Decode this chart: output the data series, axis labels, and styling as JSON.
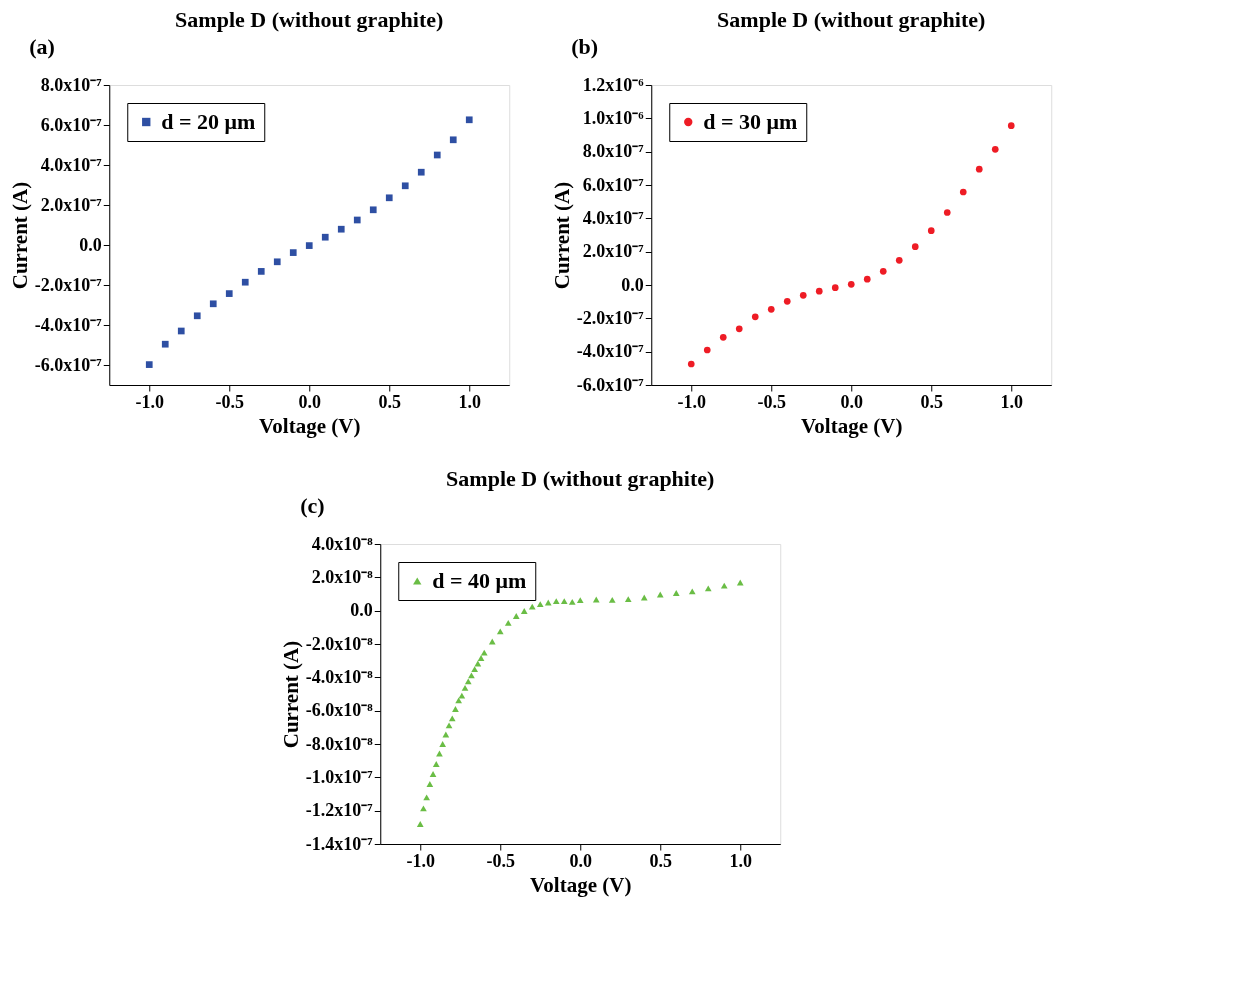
{
  "chart_data": [
    {
      "type": "scatter",
      "title": "Sample D (without graphite)",
      "xlabel": "Voltage (V)",
      "ylabel": "Current (A)",
      "annotations": [
        "(a)"
      ],
      "legend": "top left",
      "grid": false,
      "marker": "square",
      "xlim": [
        -1.25,
        1.25
      ],
      "xticks": [
        {
          "value": -1,
          "label": "-1.0"
        },
        {
          "value": -0.5,
          "label": "-0.5"
        },
        {
          "value": 0,
          "label": "0.0"
        },
        {
          "value": 0.5,
          "label": "0.5"
        },
        {
          "value": 1,
          "label": "1.0"
        }
      ],
      "ylim": [
        -7e-07,
        8e-07
      ],
      "yticks": [
        {
          "value": -6e-07,
          "label": "-6.0x10⁻⁷"
        },
        {
          "value": -4e-07,
          "label": "-4.0x10⁻⁷"
        },
        {
          "value": -2e-07,
          "label": "-2.0x10⁻⁷"
        },
        {
          "value": 0,
          "label": "0.0"
        },
        {
          "value": 2e-07,
          "label": "2.0x10⁻⁷"
        },
        {
          "value": 4e-07,
          "label": "4.0x10⁻⁷"
        },
        {
          "value": 6e-07,
          "label": "6.0x10⁻⁷"
        },
        {
          "value": 8e-07,
          "label": "8.0x10⁻⁷"
        }
      ],
      "x": [
        -1,
        -0.9,
        -0.8,
        -0.7,
        -0.6,
        -0.5,
        -0.4,
        -0.3,
        -0.2,
        -0.1,
        0,
        0.1,
        0.2,
        0.3,
        0.4,
        0.5,
        0.6,
        0.7,
        0.8,
        0.9,
        1
      ],
      "series": [
        {
          "name": "d = 20 μm",
          "color": "#2e4fa3",
          "values": [
            -5.98e-07,
            -4.96e-07,
            -4.3e-07,
            -3.54e-07,
            -2.94e-07,
            -2.43e-07,
            -1.86e-07,
            -1.32e-07,
            -8.4e-08,
            -3.8e-08,
            -3e-09,
            3.9e-08,
            7.9e-08,
            1.25e-07,
            1.76e-07,
            2.36e-07,
            2.96e-07,
            3.64e-07,
            4.5e-07,
            5.26e-07,
            6.26e-07
          ]
        }
      ]
    },
    {
      "type": "scatter",
      "title": "Sample D (without graphite)",
      "xlabel": "Voltage (V)",
      "ylabel": "Current (A)",
      "annotations": [
        "(b)"
      ],
      "legend": "top left",
      "grid": false,
      "marker": "circle",
      "xlim": [
        -1.25,
        1.25
      ],
      "xticks": [
        {
          "value": -1,
          "label": "-1.0"
        },
        {
          "value": -0.5,
          "label": "-0.5"
        },
        {
          "value": 0,
          "label": "0.0"
        },
        {
          "value": 0.5,
          "label": "0.5"
        },
        {
          "value": 1,
          "label": "1.0"
        }
      ],
      "ylim": [
        -6e-07,
        1.2e-06
      ],
      "yticks": [
        {
          "value": -6e-07,
          "label": "-6.0x10⁻⁷"
        },
        {
          "value": -4e-07,
          "label": "-4.0x10⁻⁷"
        },
        {
          "value": -2e-07,
          "label": "-2.0x10⁻⁷"
        },
        {
          "value": 0,
          "label": "0.0"
        },
        {
          "value": 2e-07,
          "label": "2.0x10⁻⁷"
        },
        {
          "value": 4e-07,
          "label": "4.0x10⁻⁷"
        },
        {
          "value": 6e-07,
          "label": "6.0x10⁻⁷"
        },
        {
          "value": 8e-07,
          "label": "8.0x10⁻⁷"
        },
        {
          "value": 1e-06,
          "label": "1.0x10⁻⁶"
        },
        {
          "value": 1.2e-06,
          "label": "1.2x10⁻⁶"
        }
      ],
      "x": [
        -1,
        -0.9,
        -0.8,
        -0.7,
        -0.6,
        -0.5,
        -0.4,
        -0.3,
        -0.2,
        -0.1,
        0,
        0.1,
        0.2,
        0.3,
        0.4,
        0.5,
        0.6,
        0.7,
        0.8,
        0.9,
        1
      ],
      "series": [
        {
          "name": "d = 30 μm",
          "color": "#ee1c25",
          "values": [
            -4.74e-07,
            -3.9e-07,
            -3.14e-07,
            -2.63e-07,
            -1.91e-07,
            -1.46e-07,
            -9.8e-08,
            -6.2e-08,
            -3.7e-08,
            -1.6e-08,
            4e-09,
            3.5e-08,
            8.2e-08,
            1.48e-07,
            2.3e-07,
            3.26e-07,
            4.35e-07,
            5.58e-07,
            6.95e-07,
            8.14e-07,
            9.56e-07
          ]
        }
      ]
    },
    {
      "type": "scatter",
      "title": "Sample D (without graphite)",
      "xlabel": "Voltage (V)",
      "ylabel": "Current (A)",
      "annotations": [
        "(c)"
      ],
      "legend": "top left",
      "grid": false,
      "marker": "triangle",
      "xlim": [
        -1.25,
        1.25
      ],
      "xticks": [
        {
          "value": -1,
          "label": "-1.0"
        },
        {
          "value": -0.5,
          "label": "-0.5"
        },
        {
          "value": 0,
          "label": "0.0"
        },
        {
          "value": 0.5,
          "label": "0.5"
        },
        {
          "value": 1,
          "label": "1.0"
        }
      ],
      "ylim": [
        -1.4e-07,
        4e-08
      ],
      "yticks": [
        {
          "value": -1.4e-07,
          "label": "-1.4x10⁻⁷"
        },
        {
          "value": -1.2e-07,
          "label": "-1.2x10⁻⁷"
        },
        {
          "value": -1e-07,
          "label": "-1.0x10⁻⁷"
        },
        {
          "value": -8e-08,
          "label": "-8.0x10⁻⁸"
        },
        {
          "value": -6e-08,
          "label": "-6.0x10⁻⁸"
        },
        {
          "value": -4e-08,
          "label": "-4.0x10⁻⁸"
        },
        {
          "value": -2e-08,
          "label": "-2.0x10⁻⁸"
        },
        {
          "value": 0,
          "label": "0.0"
        },
        {
          "value": 2e-08,
          "label": "2.0x10⁻⁸"
        },
        {
          "value": 4e-08,
          "label": "4.0x10⁻⁸"
        }
      ],
      "x": [
        -1,
        -0.98,
        -0.96,
        -0.94,
        -0.92,
        -0.9,
        -0.88,
        -0.86,
        -0.84,
        -0.82,
        -0.8,
        -0.78,
        -0.76,
        -0.74,
        -0.72,
        -0.7,
        -0.68,
        -0.66,
        -0.64,
        -0.62,
        -0.6,
        -0.55,
        -0.5,
        -0.45,
        -0.4,
        -0.35,
        -0.3,
        -0.25,
        -0.2,
        -0.15,
        -0.1,
        -0.05,
        0,
        0.1,
        0.2,
        0.3,
        0.4,
        0.5,
        0.6,
        0.7,
        0.8,
        0.9,
        1
      ],
      "series": [
        {
          "name": "d = 40 μm",
          "color": "#6abd45",
          "values": [
            -1.28e-07,
            -1.186e-07,
            -1.12e-07,
            -1.04e-07,
            -9.8e-08,
            -9.2e-08,
            -8.57e-08,
            -8e-08,
            -7.43e-08,
            -6.88e-08,
            -6.46e-08,
            -5.9e-08,
            -5.38e-08,
            -5.1e-08,
            -4.63e-08,
            -4.24e-08,
            -3.88e-08,
            -3.51e-08,
            -3.17e-08,
            -2.84e-08,
            -2.52e-08,
            -1.85e-08,
            -1.24e-08,
            -7.3e-09,
            -3.2e-09,
            -2e-10,
            2.4e-09,
            3.9e-09,
            4.9e-09,
            5.7e-09,
            5.7e-09,
            5.3e-09,
            6.3e-09,
            6.7e-09,
            6.5e-09,
            6.9e-09,
            7.9e-09,
            9.7e-09,
            1.06e-08,
            1.16e-08,
            1.34e-08,
            1.5e-08,
            1.69e-08
          ]
        }
      ]
    }
  ]
}
